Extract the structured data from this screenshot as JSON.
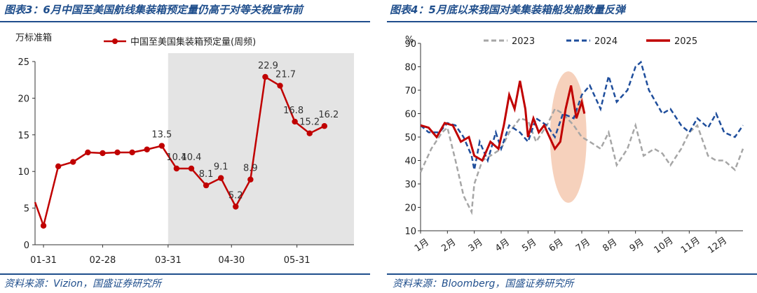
{
  "figures": {
    "left": {
      "title": "图表3：6月中国至美国航线集装箱预定量仍高于对等关税宣布前",
      "source": "资料来源：Vizion，国盛证券研究所"
    },
    "right": {
      "title": "图表4：5月底以来我国对美集装箱船发船数量反弹",
      "source": "资料来源：Bloomberg，国盛证券研究所"
    }
  },
  "chart_data": [
    {
      "type": "line",
      "title": "",
      "ylabel": "万标准箱",
      "xlabel": "",
      "ylim": [
        0,
        25
      ],
      "yticks": [
        0,
        5,
        10,
        15,
        20,
        25
      ],
      "xticks": [
        "01-31",
        "02-28",
        "03-31",
        "04-30",
        "05-31"
      ],
      "grid": false,
      "legend": "top",
      "shaded_region": {
        "from": "03-31",
        "to": "06-30",
        "color": "#e4e4e4"
      },
      "series": [
        {
          "name": "中国至美国集装箱预定量(周频)",
          "color": "#c00000",
          "x": [
            "2025-01-26",
            "2025-01-31",
            "2025-02-07",
            "2025-02-14",
            "2025-02-21",
            "2025-02-28",
            "2025-03-07",
            "2025-03-14",
            "2025-03-21",
            "2025-03-28",
            "2025-04-04",
            "2025-04-11",
            "2025-04-18",
            "2025-04-25",
            "2025-05-02",
            "2025-05-09",
            "2025-05-16",
            "2025-05-23",
            "2025-05-30",
            "2025-06-06",
            "2025-06-13",
            "2025-06-20"
          ],
          "values": [
            5.8,
            2.6,
            10.7,
            11.3,
            12.6,
            12.5,
            12.6,
            12.6,
            13.0,
            13.5,
            10.4,
            10.4,
            8.1,
            9.1,
            5.2,
            8.9,
            22.9,
            21.7,
            16.8,
            15.2,
            16.2,
            null
          ],
          "data_labels": [
            null,
            null,
            null,
            null,
            null,
            null,
            null,
            null,
            null,
            "13.5",
            "10.4",
            "10.4",
            "8.1",
            "9.1",
            "5.2",
            "8.9",
            "22.9",
            "21.7",
            "16.8",
            "15.2",
            "16.2",
            null
          ]
        }
      ]
    },
    {
      "type": "line",
      "title": "",
      "ylabel": "%",
      "xlabel": "",
      "ylim": [
        10,
        90
      ],
      "yticks": [
        10,
        20,
        30,
        40,
        50,
        60,
        70,
        80,
        90
      ],
      "xticks": [
        "1月",
        "2月",
        "3月",
        "4月",
        "5月",
        "6月",
        "7月",
        "8月",
        "9月",
        "10月",
        "11月",
        "12月"
      ],
      "grid": false,
      "legend": "top",
      "highlight_ellipse": {
        "center_month": 6.5,
        "center_value": 50,
        "color": "#f4c9b0"
      },
      "series": [
        {
          "name": "2023",
          "color": "#a6a6a6",
          "style": "dashed",
          "x_months": [
            1.0,
            1.4,
            1.8,
            2.0,
            2.3,
            2.6,
            2.9,
            3.0,
            3.3,
            3.6,
            4.0,
            4.3,
            4.7,
            5.0,
            5.3,
            5.7,
            6.0,
            6.3,
            6.7,
            7.0,
            7.3,
            7.7,
            8.0,
            8.3,
            8.7,
            9.0,
            9.3,
            9.7,
            10.0,
            10.3,
            10.7,
            11.0,
            11.3,
            11.7,
            12.0,
            12.3,
            12.7,
            13.0
          ],
          "values": [
            35,
            45,
            52,
            54,
            40,
            25,
            18,
            30,
            40,
            42,
            45,
            52,
            58,
            57,
            48,
            55,
            62,
            60,
            55,
            50,
            48,
            45,
            52,
            38,
            45,
            55,
            42,
            45,
            43,
            38,
            45,
            52,
            55,
            42,
            40,
            40,
            36,
            45
          ]
        },
        {
          "name": "2024",
          "color": "#1f4e9c",
          "style": "dashed",
          "x_months": [
            1.0,
            1.3,
            1.7,
            2.0,
            2.3,
            2.6,
            2.9,
            3.0,
            3.2,
            3.5,
            3.8,
            4.0,
            4.3,
            4.7,
            5.0,
            5.3,
            5.7,
            6.0,
            6.3,
            6.7,
            7.0,
            7.3,
            7.7,
            8.0,
            8.3,
            8.7,
            9.0,
            9.2,
            9.5,
            9.8,
            10.0,
            10.3,
            10.7,
            11.0,
            11.3,
            11.7,
            12.0,
            12.3,
            12.7,
            13.0
          ],
          "values": [
            55,
            52,
            52,
            56,
            55,
            50,
            42,
            36,
            48,
            40,
            52,
            45,
            55,
            52,
            48,
            58,
            55,
            50,
            60,
            58,
            68,
            72,
            62,
            76,
            65,
            70,
            80,
            82,
            70,
            64,
            60,
            62,
            55,
            52,
            58,
            54,
            60,
            52,
            50,
            55
          ]
        },
        {
          "name": "2025",
          "color": "#c00000",
          "style": "solid",
          "x_months": [
            1.0,
            1.3,
            1.6,
            1.9,
            2.2,
            2.5,
            2.8,
            3.0,
            3.3,
            3.6,
            3.9,
            4.1,
            4.3,
            4.5,
            4.7,
            4.9,
            5.0,
            5.2,
            5.4,
            5.6,
            5.8,
            6.0,
            6.2,
            6.4,
            6.6,
            6.8,
            7.0,
            7.1
          ],
          "values": [
            55,
            54,
            50,
            56,
            55,
            48,
            50,
            42,
            40,
            48,
            45,
            55,
            68,
            62,
            74,
            62,
            50,
            58,
            52,
            55,
            50,
            45,
            48,
            62,
            72,
            58,
            65,
            60
          ]
        }
      ]
    }
  ]
}
